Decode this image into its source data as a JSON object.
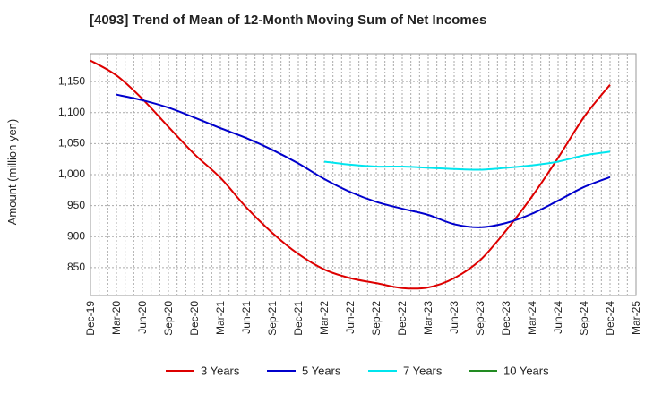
{
  "chart_data": {
    "type": "line",
    "title": "[4093]  Trend of Mean of 12-Month Moving Sum of Net Incomes",
    "ylabel": "Amount (million yen)",
    "xlabel": "",
    "ylim": [
      805,
      1195
    ],
    "xlim": [
      "2019-12",
      "2025-03"
    ],
    "y_ticks": [
      850,
      900,
      950,
      1000,
      1050,
      1100,
      1150
    ],
    "y_tick_labels": [
      "850",
      "900",
      "950",
      "1,000",
      "1,050",
      "1,100",
      "1,150"
    ],
    "x_ticks": [
      "2019-12",
      "2020-03",
      "2020-06",
      "2020-09",
      "2020-12",
      "2021-03",
      "2021-06",
      "2021-09",
      "2021-12",
      "2022-03",
      "2022-06",
      "2022-09",
      "2022-12",
      "2023-03",
      "2023-06",
      "2023-09",
      "2023-12",
      "2024-03",
      "2024-06",
      "2024-09",
      "2024-12",
      "2025-03"
    ],
    "x_tick_labels": [
      "Dec-19",
      "Mar-20",
      "Jun-20",
      "Sep-20",
      "Dec-20",
      "Mar-21",
      "Jun-21",
      "Sep-21",
      "Dec-21",
      "Mar-22",
      "Jun-22",
      "Sep-22",
      "Dec-22",
      "Mar-23",
      "Jun-23",
      "Sep-23",
      "Dec-23",
      "Mar-24",
      "Jun-24",
      "Sep-24",
      "Dec-24",
      "Mar-25"
    ],
    "grid": true,
    "legend_position": "bottom",
    "series": [
      {
        "name": "3 Years",
        "color": "#dd0000",
        "x": [
          "2019-12",
          "2020-03",
          "2020-06",
          "2020-09",
          "2020-12",
          "2021-03",
          "2021-06",
          "2021-09",
          "2021-12",
          "2022-03",
          "2022-06",
          "2022-09",
          "2022-12",
          "2023-03",
          "2023-06",
          "2023-09",
          "2023-12",
          "2024-03",
          "2024-06",
          "2024-09",
          "2024-12"
        ],
        "values": [
          1184,
          1160,
          1122,
          1077,
          1033,
          995,
          947,
          906,
          872,
          847,
          833,
          825,
          817,
          818,
          833,
          862,
          910,
          965,
          1027,
          1093,
          1145
        ]
      },
      {
        "name": "5 Years",
        "color": "#0000cc",
        "x": [
          "2020-03",
          "2020-06",
          "2020-09",
          "2020-12",
          "2021-03",
          "2021-06",
          "2021-09",
          "2021-12",
          "2022-03",
          "2022-06",
          "2022-09",
          "2022-12",
          "2023-03",
          "2023-06",
          "2023-09",
          "2023-12",
          "2024-03",
          "2024-06",
          "2024-09",
          "2024-12"
        ],
        "values": [
          1129,
          1120,
          1108,
          1092,
          1075,
          1059,
          1040,
          1018,
          993,
          972,
          956,
          945,
          935,
          920,
          915,
          922,
          937,
          958,
          980,
          996
        ]
      },
      {
        "name": "7 Years",
        "color": "#00e5ee",
        "x": [
          "2022-03",
          "2022-06",
          "2022-09",
          "2022-12",
          "2023-03",
          "2023-06",
          "2023-09",
          "2023-12",
          "2024-03",
          "2024-06",
          "2024-09",
          "2024-12"
        ],
        "values": [
          1021,
          1016,
          1013,
          1013,
          1011,
          1009,
          1008,
          1011,
          1015,
          1021,
          1031,
          1037
        ]
      },
      {
        "name": "10 Years",
        "color": "#228b22",
        "x": [],
        "values": []
      }
    ]
  }
}
